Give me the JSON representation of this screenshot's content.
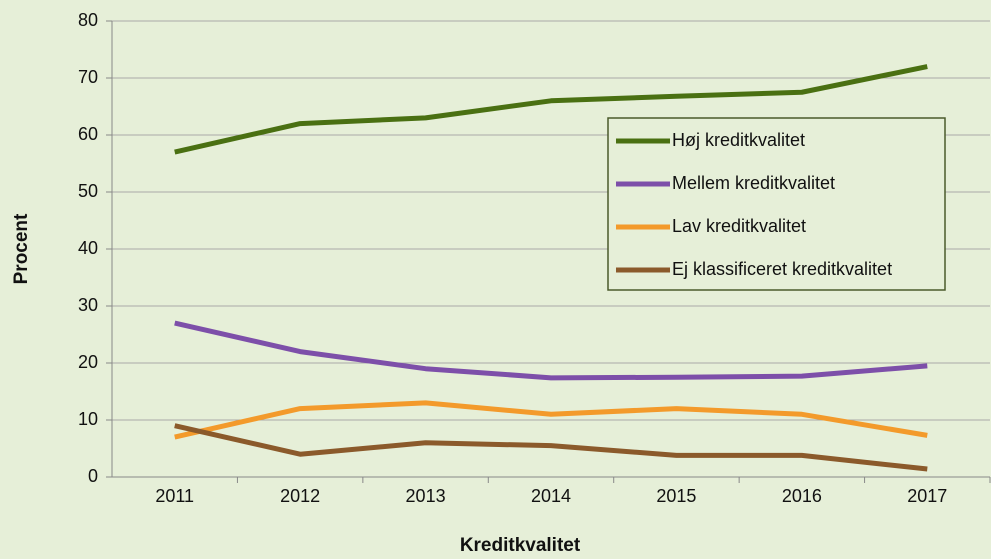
{
  "chart_data": {
    "type": "line",
    "categories": [
      "2011",
      "2012",
      "2013",
      "2014",
      "2015",
      "2016",
      "2017"
    ],
    "series": [
      {
        "name": "Høj kreditkvalitet",
        "color": "#4a7012",
        "values": [
          57,
          62,
          63,
          66,
          66.8,
          67.5,
          72
        ]
      },
      {
        "name": "Mellem kreditkvalitet",
        "color": "#7d4fa9",
        "values": [
          27,
          22,
          19,
          17.4,
          17.5,
          17.7,
          19.5
        ]
      },
      {
        "name": "Lav kreditkvalitet",
        "color": "#f39a2b",
        "values": [
          7,
          12,
          13,
          11,
          12,
          11,
          7.3
        ]
      },
      {
        "name": "Ej klassificeret kreditkvalitet",
        "color": "#8b5a2b",
        "values": [
          9,
          4,
          6,
          5.5,
          3.8,
          3.8,
          1.4
        ]
      }
    ],
    "xlabel": "Kreditkvalitet",
    "ylabel": "Procent",
    "ylim": [
      0,
      80
    ],
    "yticks": [
      0,
      10,
      20,
      30,
      40,
      50,
      60,
      70,
      80
    ],
    "grid": true
  }
}
